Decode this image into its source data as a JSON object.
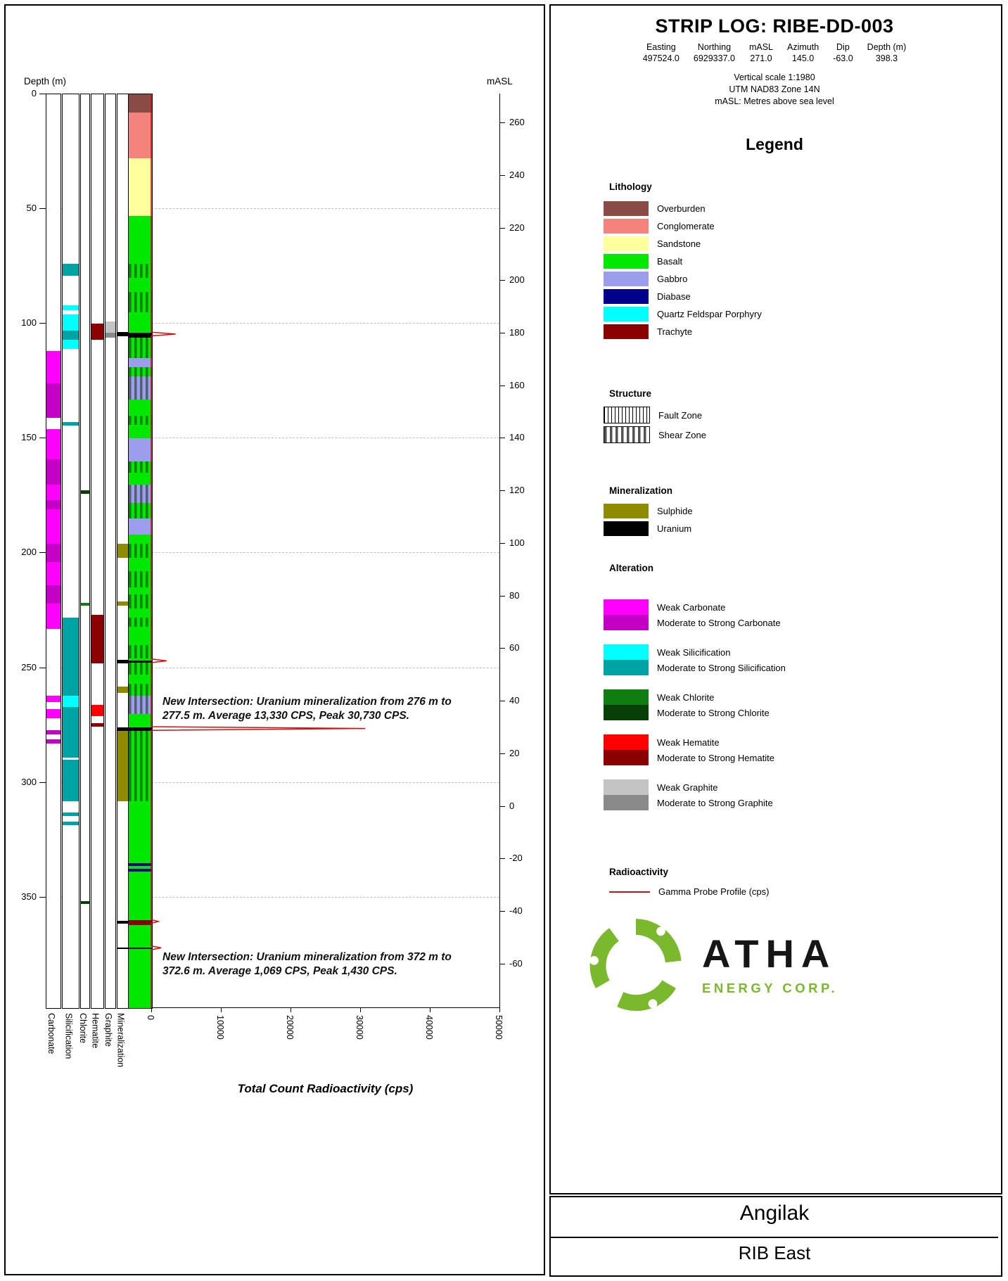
{
  "header": {
    "title": "STRIP LOG: RIBE-DD-003",
    "collar": {
      "columns": [
        "Easting",
        "Northing",
        "mASL",
        "Azimuth",
        "Dip",
        "Depth (m)"
      ],
      "values": [
        "497524.0",
        "6929337.0",
        "271.0",
        "145.0",
        "-63.0",
        "398.3"
      ]
    },
    "scale_lines": [
      "Vertical scale 1:1980",
      "UTM NAD83 Zone 14N",
      "mASL: Metres above sea level"
    ]
  },
  "legend": {
    "title": "Legend",
    "lithology": {
      "heading": "Lithology",
      "items": [
        {
          "label": "Overburden",
          "color": "#8a4a45"
        },
        {
          "label": "Conglomerate",
          "color": "#f4837e"
        },
        {
          "label": "Sandstone",
          "color": "#ffff9e"
        },
        {
          "label": "Basalt",
          "color": "#00e800"
        },
        {
          "label": "Gabbro",
          "color": "#9d9dee"
        },
        {
          "label": "Diabase",
          "color": "#00008b"
        },
        {
          "label": "Quartz Feldspar Porphyry",
          "color": "#00ffff"
        },
        {
          "label": "Trachyte",
          "color": "#8b0000"
        }
      ]
    },
    "structure": {
      "heading": "Structure",
      "items": [
        {
          "label": "Fault Zone",
          "pattern": "fault"
        },
        {
          "label": "Shear Zone",
          "pattern": "shear"
        }
      ]
    },
    "mineralization": {
      "heading": "Mineralization",
      "items": [
        {
          "label": "Sulphide",
          "color": "#8f8b00"
        },
        {
          "label": "Uranium",
          "color": "#000000"
        }
      ]
    },
    "alteration": {
      "heading": "Alteration",
      "groups": [
        {
          "weak_label": "Weak Carbonate",
          "weak_color": "#ff00ff",
          "strong_label": "Moderate to Strong Carbonate",
          "strong_color": "#c400c4"
        },
        {
          "weak_label": "Weak Silicification",
          "weak_color": "#00ffff",
          "strong_label": "Moderate to Strong Silicification",
          "strong_color": "#00a3a3"
        },
        {
          "weak_label": "Weak Chlorite",
          "weak_color": "#0f7d0f",
          "strong_label": "Moderate to Strong Chlorite",
          "strong_color": "#073f07"
        },
        {
          "weak_label": "Weak Hematite",
          "weak_color": "#ff0000",
          "strong_label": "Moderate to Strong Hematite",
          "strong_color": "#8b0000"
        },
        {
          "weak_label": "Weak Graphite",
          "weak_color": "#c4c4c4",
          "strong_label": "Moderate to Strong Graphite",
          "strong_color": "#8a8a8a"
        }
      ]
    },
    "radioactivity": {
      "heading": "Radioactivity",
      "label": "Gamma Probe Profile (cps)",
      "line_color": "#cc1111"
    }
  },
  "branding": {
    "name": "ATHA",
    "subtitle": "ENERGY CORP.",
    "logo_color": "#7ab82d"
  },
  "footer": {
    "project": "Angilak",
    "area": "RIB East"
  },
  "chart_data": {
    "type": "strip-log",
    "depth_axis": {
      "label": "Depth (m)",
      "min": 0,
      "max": 398.3,
      "ticks": [
        0,
        50,
        100,
        150,
        200,
        250,
        300,
        350
      ]
    },
    "masl_axis": {
      "label": "mASL",
      "collar_masl": 271.0,
      "masl_per_m": 0.873,
      "ticks": [
        260,
        240,
        220,
        200,
        180,
        160,
        140,
        120,
        100,
        80,
        60,
        40,
        20,
        0,
        -20,
        -40,
        -60
      ]
    },
    "cps_axis": {
      "label": "Total Count Radioactivity (cps)",
      "min": 0,
      "max": 50000,
      "ticks": [
        0,
        10000,
        20000,
        30000,
        40000,
        50000
      ]
    },
    "tracks": [
      {
        "name": "Carbonate",
        "intervals": [
          {
            "from": 112,
            "to": 126,
            "color": "#ff00ff"
          },
          {
            "from": 126,
            "to": 141,
            "color": "#c400c4"
          },
          {
            "from": 146,
            "to": 159,
            "color": "#ff00ff"
          },
          {
            "from": 159,
            "to": 170,
            "color": "#c400c4"
          },
          {
            "from": 170,
            "to": 177,
            "color": "#ff00ff"
          },
          {
            "from": 177,
            "to": 181,
            "color": "#c400c4"
          },
          {
            "from": 181,
            "to": 196,
            "color": "#ff00ff"
          },
          {
            "from": 196,
            "to": 204,
            "color": "#c400c4"
          },
          {
            "from": 204,
            "to": 214,
            "color": "#ff00ff"
          },
          {
            "from": 214,
            "to": 222,
            "color": "#c400c4"
          },
          {
            "from": 222,
            "to": 233,
            "color": "#ff00ff"
          },
          {
            "from": 262,
            "to": 265,
            "color": "#ff00ff"
          },
          {
            "from": 268,
            "to": 272,
            "color": "#ff00ff"
          },
          {
            "from": 277,
            "to": 279,
            "color": "#c400c4"
          },
          {
            "from": 281,
            "to": 283,
            "color": "#c400c4"
          }
        ]
      },
      {
        "name": "Silicification",
        "intervals": [
          {
            "from": 74,
            "to": 79,
            "color": "#00a3a3"
          },
          {
            "from": 92,
            "to": 94,
            "color": "#00ffff"
          },
          {
            "from": 96,
            "to": 103,
            "color": "#00ffff"
          },
          {
            "from": 103,
            "to": 107,
            "color": "#00a3a3"
          },
          {
            "from": 107,
            "to": 111,
            "color": "#00ffff"
          },
          {
            "from": 143,
            "to": 144.5,
            "color": "#00a3a3"
          },
          {
            "from": 228,
            "to": 262,
            "color": "#00a3a3"
          },
          {
            "from": 262,
            "to": 267,
            "color": "#00ffff"
          },
          {
            "from": 267,
            "to": 289,
            "color": "#00a3a3"
          },
          {
            "from": 290,
            "to": 308,
            "color": "#00a3a3"
          },
          {
            "from": 313,
            "to": 314.5,
            "color": "#00a3a3"
          },
          {
            "from": 317,
            "to": 318.5,
            "color": "#00a3a3"
          }
        ]
      },
      {
        "name": "Chlorite",
        "intervals": [
          {
            "from": 172.5,
            "to": 174,
            "color": "#073f07"
          },
          {
            "from": 221.5,
            "to": 223,
            "color": "#0f7d0f"
          },
          {
            "from": 351.5,
            "to": 353,
            "color": "#073f07"
          }
        ]
      },
      {
        "name": "Hematite",
        "intervals": [
          {
            "from": 100,
            "to": 107,
            "color": "#8b0000"
          },
          {
            "from": 227,
            "to": 248,
            "color": "#8b0000"
          },
          {
            "from": 266,
            "to": 271,
            "color": "#ff0000"
          },
          {
            "from": 274,
            "to": 275.5,
            "color": "#8b0000"
          }
        ]
      },
      {
        "name": "Graphite",
        "intervals": [
          {
            "from": 99,
            "to": 104,
            "color": "#c4c4c4"
          },
          {
            "from": 104,
            "to": 106,
            "color": "#8a8a8a"
          }
        ]
      },
      {
        "name": "Mineralization",
        "intervals": [
          {
            "from": 103.5,
            "to": 105.5,
            "color": "#000000"
          },
          {
            "from": 196,
            "to": 202,
            "color": "#8f8b00"
          },
          {
            "from": 221,
            "to": 223,
            "color": "#8f8b00"
          },
          {
            "from": 246.5,
            "to": 248,
            "color": "#000000"
          },
          {
            "from": 258,
            "to": 261,
            "color": "#8f8b00"
          },
          {
            "from": 276,
            "to": 277.5,
            "color": "#000000"
          },
          {
            "from": 277.5,
            "to": 308,
            "color": "#8f8b00"
          },
          {
            "from": 360.3,
            "to": 361.3,
            "color": "#000000"
          },
          {
            "from": 371.8,
            "to": 372.6,
            "color": "#000000"
          }
        ]
      }
    ],
    "lithology_column": {
      "name": "Lithology",
      "intervals": [
        {
          "from": 0,
          "to": 8,
          "unit": "Overburden",
          "color": "#8a4a45"
        },
        {
          "from": 8,
          "to": 28,
          "unit": "Conglomerate",
          "color": "#f4837e"
        },
        {
          "from": 28,
          "to": 53,
          "unit": "Sandstone",
          "color": "#ffff9e"
        },
        {
          "from": 53,
          "to": 74,
          "unit": "Basalt",
          "color": "#00e800"
        },
        {
          "from": 74,
          "to": 80,
          "unit": "Basalt",
          "color": "#00e800",
          "pattern": "shear"
        },
        {
          "from": 80,
          "to": 86,
          "unit": "Basalt",
          "color": "#00e800"
        },
        {
          "from": 86,
          "to": 95,
          "unit": "Basalt",
          "color": "#00e800",
          "pattern": "shear"
        },
        {
          "from": 95,
          "to": 104,
          "unit": "Basalt",
          "color": "#00e800"
        },
        {
          "from": 104,
          "to": 106,
          "unit": "Uranium",
          "color": "#000000"
        },
        {
          "from": 106,
          "to": 115,
          "unit": "Basalt",
          "color": "#00e800",
          "pattern": "shear"
        },
        {
          "from": 115,
          "to": 119,
          "unit": "Gabbro",
          "color": "#9d9dee"
        },
        {
          "from": 119,
          "to": 123,
          "unit": "Basalt",
          "color": "#00e800",
          "pattern": "shear"
        },
        {
          "from": 123,
          "to": 133,
          "unit": "Gabbro",
          "color": "#9d9dee",
          "pattern": "shear"
        },
        {
          "from": 133,
          "to": 140,
          "unit": "Basalt",
          "color": "#00e800"
        },
        {
          "from": 140,
          "to": 144,
          "unit": "Basalt",
          "color": "#00e800",
          "pattern": "shear"
        },
        {
          "from": 144,
          "to": 150,
          "unit": "Basalt",
          "color": "#00e800"
        },
        {
          "from": 150,
          "to": 160,
          "unit": "Gabbro",
          "color": "#9d9dee"
        },
        {
          "from": 160,
          "to": 165,
          "unit": "Basalt",
          "color": "#00e800",
          "pattern": "shear"
        },
        {
          "from": 165,
          "to": 170,
          "unit": "Basalt",
          "color": "#00e800"
        },
        {
          "from": 170,
          "to": 178,
          "unit": "Gabbro",
          "color": "#9d9dee",
          "pattern": "shear"
        },
        {
          "from": 178,
          "to": 185,
          "unit": "Basalt",
          "color": "#00e800",
          "pattern": "shear"
        },
        {
          "from": 185,
          "to": 192,
          "unit": "Gabbro",
          "color": "#9d9dee"
        },
        {
          "from": 192,
          "to": 196,
          "unit": "Basalt",
          "color": "#00e800"
        },
        {
          "from": 196,
          "to": 202,
          "unit": "Basalt",
          "color": "#00e800",
          "pattern": "shear"
        },
        {
          "from": 202,
          "to": 208,
          "unit": "Basalt",
          "color": "#00e800"
        },
        {
          "from": 208,
          "to": 215,
          "unit": "Basalt",
          "color": "#00e800",
          "pattern": "shear"
        },
        {
          "from": 215,
          "to": 218,
          "unit": "Basalt",
          "color": "#00e800"
        },
        {
          "from": 218,
          "to": 224,
          "unit": "Basalt",
          "color": "#00e800",
          "pattern": "shear"
        },
        {
          "from": 224,
          "to": 228,
          "unit": "Basalt",
          "color": "#00e800"
        },
        {
          "from": 228,
          "to": 232,
          "unit": "Basalt",
          "color": "#00e800",
          "pattern": "shear"
        },
        {
          "from": 232,
          "to": 240,
          "unit": "Basalt",
          "color": "#00e800"
        },
        {
          "from": 240,
          "to": 246,
          "unit": "Basalt",
          "color": "#00e800",
          "pattern": "shear"
        },
        {
          "from": 246,
          "to": 246.8,
          "unit": "Basalt",
          "color": "#00e800"
        },
        {
          "from": 246.8,
          "to": 247.6,
          "unit": "Uranium",
          "color": "#000000"
        },
        {
          "from": 247.6,
          "to": 253,
          "unit": "Basalt",
          "color": "#00e800",
          "pattern": "shear"
        },
        {
          "from": 253,
          "to": 257,
          "unit": "Basalt",
          "color": "#00e800"
        },
        {
          "from": 257,
          "to": 262,
          "unit": "Basalt",
          "color": "#00e800",
          "pattern": "shear"
        },
        {
          "from": 262,
          "to": 270,
          "unit": "Gabbro",
          "color": "#9d9dee",
          "pattern": "shear"
        },
        {
          "from": 270,
          "to": 276,
          "unit": "Basalt",
          "color": "#00e800"
        },
        {
          "from": 276,
          "to": 277.5,
          "unit": "Uranium",
          "color": "#000000"
        },
        {
          "from": 277.5,
          "to": 308,
          "unit": "Basalt",
          "color": "#00e800",
          "pattern": "shear"
        },
        {
          "from": 308,
          "to": 335,
          "unit": "Basalt",
          "color": "#00e800"
        },
        {
          "from": 335,
          "to": 336.2,
          "unit": "Diabase",
          "color": "#00008b"
        },
        {
          "from": 336.2,
          "to": 337.6,
          "unit": "Basalt",
          "color": "#00e800"
        },
        {
          "from": 337.6,
          "to": 338.8,
          "unit": "Diabase",
          "color": "#00008b"
        },
        {
          "from": 338.8,
          "to": 360,
          "unit": "Basalt",
          "color": "#00e800"
        },
        {
          "from": 360,
          "to": 362,
          "unit": "Trachyte",
          "color": "#8b0000"
        },
        {
          "from": 362,
          "to": 371.8,
          "unit": "Basalt",
          "color": "#00e800"
        },
        {
          "from": 371.8,
          "to": 372.6,
          "unit": "Uranium",
          "color": "#000000"
        },
        {
          "from": 372.6,
          "to": 398.3,
          "unit": "Basalt",
          "color": "#00e800"
        }
      ]
    },
    "gamma": {
      "color": "#cc1111",
      "spikes": [
        {
          "depth": 104.8,
          "peak_cps": 3500
        },
        {
          "depth": 247.2,
          "peak_cps": 2200
        },
        {
          "depth": 276.7,
          "peak_cps": 30730
        },
        {
          "depth": 360.8,
          "peak_cps": 1000
        },
        {
          "depth": 372.3,
          "peak_cps": 1430
        }
      ]
    },
    "annotations": [
      {
        "at_depth": 262,
        "text": "New Intersection: Uranium mineralization from 276 m to 277.5 m. Average 13,330 CPS, Peak 30,730 CPS."
      },
      {
        "at_depth": 373.5,
        "text": "New Intersection: Uranium mineralization from 372 m to 372.6 m. Average 1,069 CPS, Peak 1,430 CPS."
      }
    ]
  }
}
